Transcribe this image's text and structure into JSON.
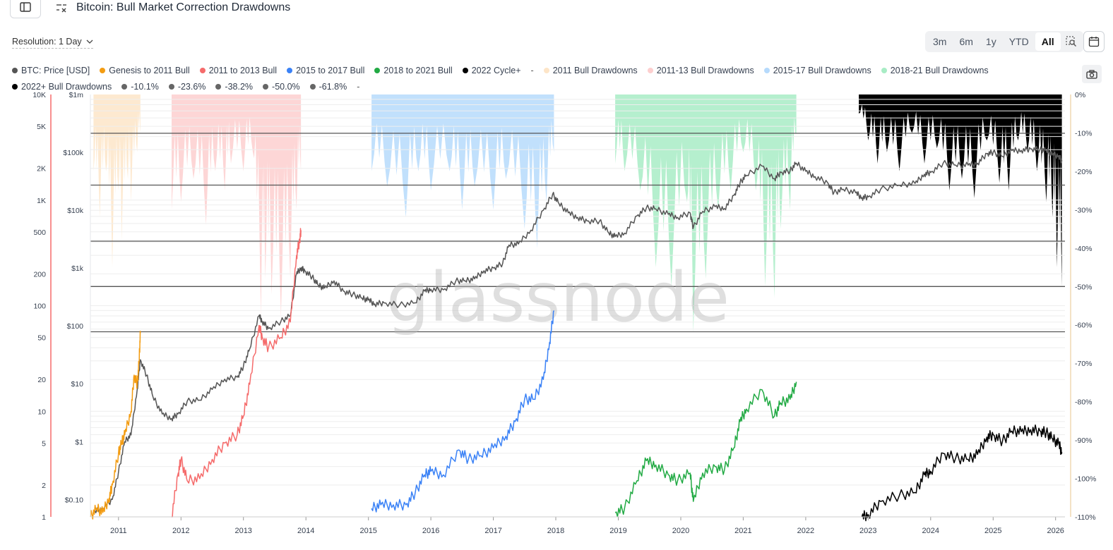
{
  "header": {
    "title": "Bitcoin: Bull Market Correction Drawdowns"
  },
  "controls": {
    "resolution_label": "Resolution: 1 Day",
    "ranges": [
      {
        "label": "3m",
        "active": false
      },
      {
        "label": "6m",
        "active": false
      },
      {
        "label": "1y",
        "active": false
      },
      {
        "label": "YTD",
        "active": false
      },
      {
        "label": "All",
        "active": true
      }
    ]
  },
  "legend": {
    "row1": [
      {
        "label": "BTC: Price [USD]",
        "color": "#555555"
      },
      {
        "label": "Genesis to 2011 Bull",
        "color": "#f39c12"
      },
      {
        "label": "2011 to 2013 Bull",
        "color": "#f56b6b"
      },
      {
        "label": "2015 to 2017 Bull",
        "color": "#3b82f6"
      },
      {
        "label": "2018 to 2021 Bull",
        "color": "#22aa44"
      },
      {
        "label": "2022 Cycle+",
        "color": "#000000"
      },
      {
        "label": "-",
        "color": null
      },
      {
        "label": "2011 Bull Drawdowns",
        "color": "#fde5c8"
      },
      {
        "label": "2011-13 Bull Drawdowns",
        "color": "#fdcfcf"
      },
      {
        "label": "2015-17 Bull Drawdowns",
        "color": "#b6dafc"
      },
      {
        "label": "2018-21 Bull Drawdowns",
        "color": "#a8ecc5"
      }
    ],
    "row2": [
      {
        "label": "2022+ Bull Drawdowns",
        "color": "#000000"
      },
      {
        "label": "-10.1%",
        "color": "#666666"
      },
      {
        "label": "-23.6%",
        "color": "#666666"
      },
      {
        "label": "-38.2%",
        "color": "#666666"
      },
      {
        "label": "-50.0%",
        "color": "#666666"
      },
      {
        "label": "-61.8%",
        "color": "#666666"
      },
      {
        "label": "-",
        "color": null
      }
    ]
  },
  "chart_data": {
    "type": "line",
    "watermark": "glassnode",
    "x_ticks": [
      "2011",
      "2012",
      "2013",
      "2014",
      "2015",
      "2016",
      "2017",
      "2018",
      "2019",
      "2020",
      "2021",
      "2022",
      "2023",
      "2024",
      "2025",
      "2026"
    ],
    "x_range": [
      2010.55,
      2026.15
    ],
    "left_axis_cycle": {
      "scale": "log",
      "range": [
        1,
        10000
      ],
      "ticks": [
        {
          "label": "10K",
          "value": 10000
        },
        {
          "label": "5K",
          "value": 5000
        },
        {
          "label": "2K",
          "value": 2000
        },
        {
          "label": "1K",
          "value": 1000
        },
        {
          "label": "500",
          "value": 500
        },
        {
          "label": "200",
          "value": 200
        },
        {
          "label": "100",
          "value": 100
        },
        {
          "label": "50",
          "value": 50
        },
        {
          "label": "20",
          "value": 20
        },
        {
          "label": "10",
          "value": 10
        },
        {
          "label": "5",
          "value": 5
        },
        {
          "label": "2",
          "value": 2
        },
        {
          "label": "1",
          "value": 1
        }
      ]
    },
    "left_axis_price": {
      "scale": "log",
      "range": [
        0.05,
        1000000
      ],
      "ticks": [
        {
          "label": "$1m",
          "value": 1000000
        },
        {
          "label": "$100k",
          "value": 100000
        },
        {
          "label": "$10k",
          "value": 10000
        },
        {
          "label": "$1k",
          "value": 1000
        },
        {
          "label": "$100",
          "value": 100
        },
        {
          "label": "$10",
          "value": 10
        },
        {
          "label": "$1",
          "value": 1
        },
        {
          "label": "$0.10",
          "value": 0.1
        }
      ]
    },
    "right_axis_drawdown": {
      "range": [
        -110,
        0
      ],
      "ticks": [
        "0%",
        "-10%",
        "-20%",
        "-30%",
        "-40%",
        "-50%",
        "-60%",
        "-70%",
        "-80%",
        "-90%",
        "-100%",
        "-110%"
      ]
    },
    "reference_levels": [
      -10.1,
      -23.6,
      -38.2,
      -50.0,
      -61.8
    ],
    "series": [
      {
        "name": "BTC: Price [USD]",
        "axis": "price",
        "color": "#555555",
        "x": [
          2010.6,
          2010.75,
          2010.9,
          2011.0,
          2011.1,
          2011.2,
          2011.3,
          2011.35,
          2011.45,
          2011.55,
          2011.7,
          2011.85,
          2011.95,
          2012.1,
          2012.3,
          2012.5,
          2012.7,
          2012.9,
          2013.0,
          2013.1,
          2013.25,
          2013.3,
          2013.4,
          2013.6,
          2013.75,
          2013.85,
          2013.92,
          2013.98,
          2014.1,
          2014.2,
          2014.3,
          2014.45,
          2014.6,
          2014.75,
          2014.9,
          2015.0,
          2015.1,
          2015.25,
          2015.5,
          2015.75,
          2015.9,
          2016.0,
          2016.2,
          2016.4,
          2016.55,
          2016.7,
          2016.85,
          2017.0,
          2017.15,
          2017.25,
          2017.4,
          2017.6,
          2017.8,
          2017.95,
          2018.05,
          2018.2,
          2018.35,
          2018.5,
          2018.7,
          2018.85,
          2018.95,
          2019.1,
          2019.3,
          2019.45,
          2019.6,
          2019.8,
          2019.95,
          2020.15,
          2020.2,
          2020.35,
          2020.55,
          2020.7,
          2020.85,
          2020.95,
          2021.05,
          2021.3,
          2021.5,
          2021.6,
          2021.75,
          2021.85,
          2022.0,
          2022.15,
          2022.35,
          2022.45,
          2022.6,
          2022.8,
          2022.9,
          2023.0,
          2023.2,
          2023.5,
          2023.75,
          2023.9,
          2024.0,
          2024.2,
          2024.4,
          2024.6,
          2024.75,
          2024.9,
          2025.0,
          2025.15,
          2025.3,
          2025.45,
          2025.6,
          2025.75,
          2025.85,
          2025.95,
          2026.05,
          2026.1
        ],
        "y": [
          0.06,
          0.07,
          0.1,
          0.3,
          1,
          1.3,
          8,
          26,
          14,
          6,
          3,
          2.5,
          3,
          5,
          5.2,
          8,
          12,
          13,
          20,
          40,
          150,
          120,
          90,
          120,
          150,
          800,
          1000,
          900,
          700,
          500,
          450,
          600,
          400,
          350,
          300,
          280,
          240,
          250,
          230,
          250,
          400,
          430,
          420,
          600,
          600,
          650,
          900,
          1000,
          1200,
          2500,
          2600,
          4500,
          10000,
          19000,
          13000,
          9000,
          7500,
          6500,
          6500,
          4000,
          3500,
          4000,
          8000,
          11000,
          10500,
          8500,
          7500,
          9000,
          5000,
          9500,
          11500,
          10700,
          18000,
          30000,
          40000,
          58000,
          35000,
          45000,
          48000,
          65000,
          47000,
          38000,
          30000,
          20000,
          23000,
          20000,
          16500,
          17000,
          23000,
          27000,
          29000,
          42000,
          45000,
          65000,
          60000,
          60000,
          65000,
          95000,
          100000,
          85000,
          107000,
          108000,
          115000,
          112000,
          108000,
          90000,
          88000,
          70000
        ]
      },
      {
        "name": "Genesis to 2011 Bull",
        "axis": "cycle",
        "color": "#f39c12",
        "x": [
          2010.55,
          2010.65,
          2010.75,
          2010.85,
          2010.9,
          2011.0,
          2011.05,
          2011.1,
          2011.2,
          2011.25,
          2011.3,
          2011.33,
          2011.35
        ],
        "y": [
          1,
          1.2,
          1.1,
          1.5,
          2,
          4,
          5,
          6,
          10,
          22,
          18,
          30,
          55
        ]
      },
      {
        "name": "2011 to 2013 Bull",
        "axis": "cycle",
        "color": "#f56b6b",
        "x": [
          2011.85,
          2011.95,
          2012.0,
          2012.1,
          2012.3,
          2012.5,
          2012.7,
          2012.9,
          2013.0,
          2013.1,
          2013.25,
          2013.3,
          2013.4,
          2013.6,
          2013.75,
          2013.85,
          2013.9,
          2013.92
        ],
        "y": [
          1,
          2.5,
          3.5,
          2.2,
          2.3,
          3.5,
          5,
          6,
          9,
          18,
          65,
          50,
          40,
          50,
          70,
          300,
          420,
          520
        ]
      },
      {
        "name": "2015 to 2017 Bull",
        "axis": "cycle",
        "color": "#3b82f6",
        "x": [
          2015.05,
          2015.2,
          2015.4,
          2015.6,
          2015.75,
          2015.9,
          2016.0,
          2016.2,
          2016.45,
          2016.6,
          2016.8,
          2017.0,
          2017.2,
          2017.35,
          2017.5,
          2017.65,
          2017.8,
          2017.9,
          2017.97
        ],
        "y": [
          1.2,
          1.3,
          1.3,
          1.3,
          1.7,
          2.5,
          2.7,
          2.5,
          4.3,
          3.5,
          3.8,
          4.5,
          5.8,
          8,
          13,
          13,
          20,
          45,
          90
        ]
      },
      {
        "name": "2018 to 2021 Bull",
        "axis": "cycle",
        "color": "#22aa44",
        "x": [
          2018.95,
          2019.1,
          2019.3,
          2019.45,
          2019.6,
          2019.8,
          2019.95,
          2020.15,
          2020.2,
          2020.35,
          2020.55,
          2020.7,
          2020.85,
          2020.95,
          2021.05,
          2021.3,
          2021.5,
          2021.6,
          2021.75,
          2021.85
        ],
        "y": [
          1.1,
          1.2,
          2.2,
          3.4,
          3.1,
          2.5,
          2.2,
          2.6,
          1.4,
          2.6,
          3.0,
          2.8,
          4.5,
          8,
          10.5,
          16,
          9,
          12,
          13,
          19
        ]
      },
      {
        "name": "2022 Cycle+",
        "axis": "cycle",
        "color": "#000000",
        "x": [
          2022.9,
          2023.0,
          2023.2,
          2023.5,
          2023.75,
          2023.9,
          2024.0,
          2024.2,
          2024.4,
          2024.6,
          2024.75,
          2024.9,
          2025.0,
          2025.15,
          2025.3,
          2025.45,
          2025.6,
          2025.75,
          2025.85,
          2025.95,
          2026.05,
          2026.1
        ],
        "y": [
          1,
          1.05,
          1.4,
          1.6,
          1.7,
          2.5,
          2.7,
          4.0,
          3.6,
          3.5,
          3.9,
          5.7,
          6.0,
          5.2,
          6.5,
          6.4,
          6.7,
          6.5,
          6.3,
          5.5,
          4.9,
          4.1
        ]
      }
    ],
    "drawdown_bands": [
      {
        "name": "2011 Bull Drawdowns",
        "color": "#fde5c8",
        "x_start": 2010.6,
        "x_end": 2011.35,
        "x": [
          2010.6,
          2010.7,
          2010.8,
          2010.9,
          2011.0,
          2011.05,
          2011.15,
          2011.2,
          2011.3,
          2011.35
        ],
        "drawdown": [
          -20,
          -32,
          -20,
          -45,
          -25,
          -38,
          -22,
          -28,
          -15,
          -10
        ]
      },
      {
        "name": "2011-13 Bull Drawdowns",
        "color": "#fdcfcf",
        "x_start": 2011.85,
        "x_end": 2013.92,
        "x": [
          2011.85,
          2012.0,
          2012.2,
          2012.4,
          2012.55,
          2012.7,
          2012.8,
          2013.0,
          2013.15,
          2013.28,
          2013.35,
          2013.45,
          2013.6,
          2013.75,
          2013.85,
          2013.92
        ],
        "drawdown": [
          -30,
          -28,
          -22,
          -34,
          -20,
          -25,
          -18,
          -20,
          -15,
          -58,
          -48,
          -52,
          -58,
          -48,
          -30,
          -20
        ]
      },
      {
        "name": "2015-17 Bull Drawdowns",
        "color": "#b6dafc",
        "x_start": 2015.05,
        "x_end": 2017.97,
        "x": [
          2015.05,
          2015.3,
          2015.6,
          2015.8,
          2016.0,
          2016.3,
          2016.5,
          2016.7,
          2017.0,
          2017.2,
          2017.5,
          2017.7,
          2017.85,
          2017.97
        ],
        "drawdown": [
          -20,
          -24,
          -32,
          -20,
          -25,
          -20,
          -30,
          -24,
          -30,
          -22,
          -35,
          -40,
          -28,
          -15
        ]
      },
      {
        "name": "2018-21 Bull Drawdowns",
        "color": "#a8ecc5",
        "x_start": 2018.95,
        "x_end": 2021.85,
        "x": [
          2018.95,
          2019.1,
          2019.35,
          2019.6,
          2019.85,
          2020.1,
          2020.2,
          2020.4,
          2020.6,
          2020.8,
          2021.0,
          2021.2,
          2021.35,
          2021.5,
          2021.6,
          2021.75,
          2021.85
        ],
        "drawdown": [
          -18,
          -20,
          -25,
          -45,
          -50,
          -28,
          -62,
          -48,
          -30,
          -25,
          -15,
          -25,
          -50,
          -53,
          -35,
          -30,
          -10
        ]
      },
      {
        "name": "2022+ Bull Drawdowns",
        "color": "#000000",
        "x_start": 2022.85,
        "x_end": 2026.1,
        "x": [
          2022.85,
          2023.0,
          2023.15,
          2023.3,
          2023.5,
          2023.7,
          2023.9,
          2024.1,
          2024.3,
          2024.5,
          2024.7,
          2024.9,
          2025.1,
          2025.25,
          2025.4,
          2025.55,
          2025.7,
          2025.85,
          2025.95,
          2026.02,
          2026.1
        ],
        "drawdown": [
          -5,
          -12,
          -18,
          -15,
          -20,
          -10,
          -18,
          -14,
          -25,
          -22,
          -27,
          -12,
          -23,
          -25,
          -12,
          -15,
          -20,
          -28,
          -32,
          -45,
          -50
        ]
      }
    ]
  }
}
